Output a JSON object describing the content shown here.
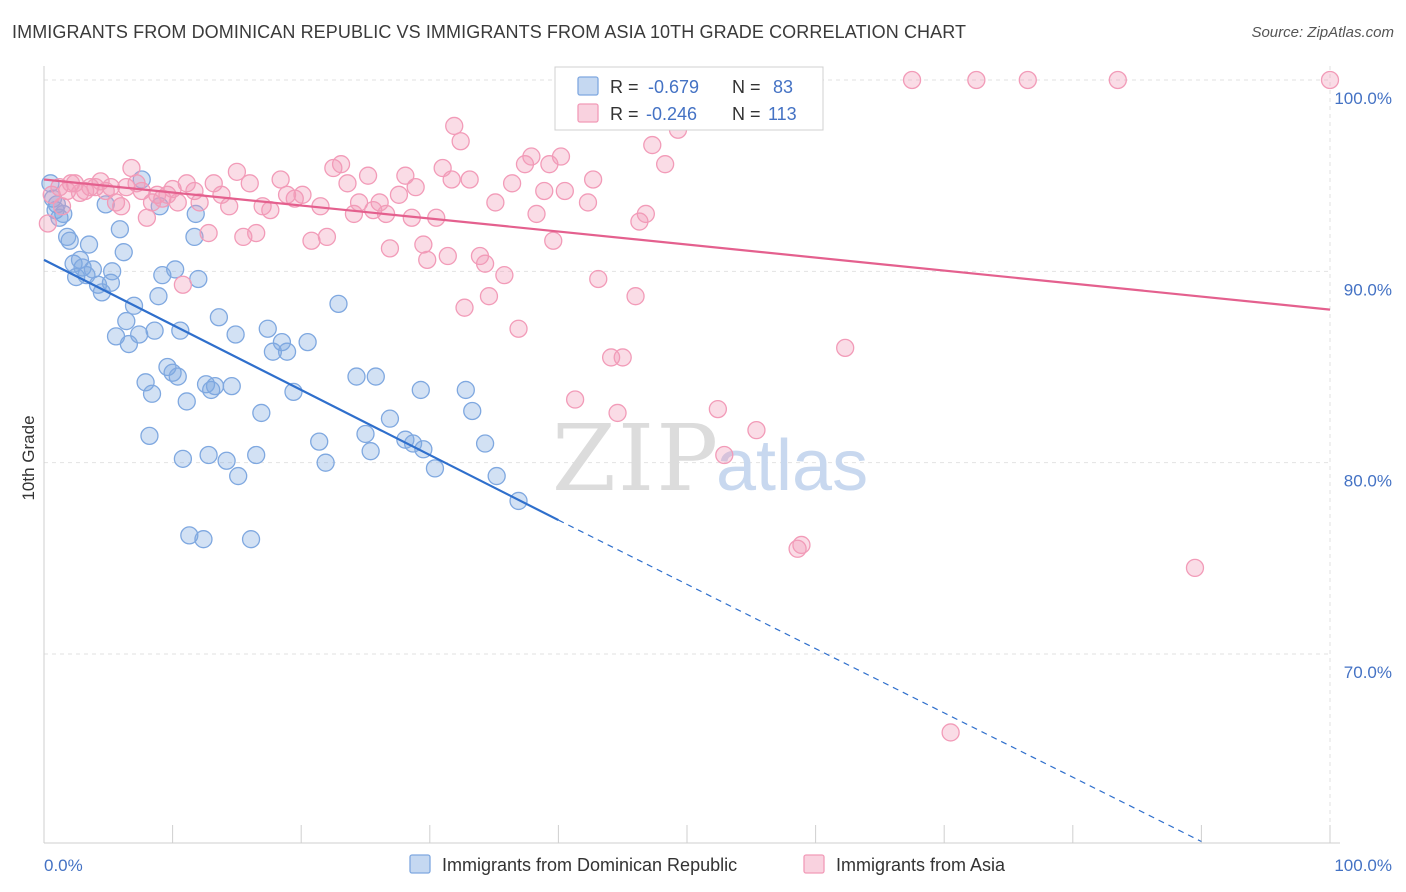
{
  "header": {
    "title": "IMMIGRANTS FROM DOMINICAN REPUBLIC VS IMMIGRANTS FROM ASIA 10TH GRADE CORRELATION CHART",
    "source": "Source: ZipAtlas.com"
  },
  "watermark": {
    "zip": "ZIP",
    "atlas": "atlas"
  },
  "chart_data": {
    "type": "scatter",
    "title": "IMMIGRANTS FROM DOMINICAN REPUBLIC VS IMMIGRANTS FROM ASIA 10TH GRADE CORRELATION CHART",
    "ylabel": "10th Grade",
    "xlabel": "",
    "xlim": [
      0,
      100
    ],
    "ylim": [
      60.5,
      101.5
    ],
    "x_tick_labels": [
      "0.0%",
      "100.0%"
    ],
    "y_ticks": [
      70,
      80,
      90,
      100
    ],
    "y_tick_labels": [
      "70.0%",
      "80.0%",
      "90.0%",
      "100.0%"
    ],
    "grid": true,
    "legend_position": "bottom",
    "stats": {
      "r_label": "R =",
      "n_label": "N =",
      "rows": [
        {
          "r": "-0.679",
          "n": "83"
        },
        {
          "r": "-0.246",
          "n": "113"
        }
      ]
    },
    "series": [
      {
        "name": "Immigrants from Dominican Republic",
        "color": "#7fa8e0",
        "line_color": "#2f6fcc",
        "trend": {
          "x0": 0,
          "y0": 90.6,
          "x1": 40,
          "y1": 77.0,
          "dash_x1": 90,
          "dash_y1": 60.2
        },
        "points": [
          [
            0.5,
            94.6
          ],
          [
            0.7,
            93.8
          ],
          [
            0.9,
            93.2
          ],
          [
            1.0,
            93.5
          ],
          [
            1.2,
            92.8
          ],
          [
            1.5,
            93.0
          ],
          [
            1.8,
            91.8
          ],
          [
            2.0,
            91.6
          ],
          [
            2.3,
            90.4
          ],
          [
            2.5,
            89.7
          ],
          [
            2.8,
            90.6
          ],
          [
            3.0,
            90.2
          ],
          [
            3.3,
            89.8
          ],
          [
            3.5,
            91.4
          ],
          [
            3.8,
            90.1
          ],
          [
            4.2,
            89.3
          ],
          [
            4.5,
            88.9
          ],
          [
            4.8,
            93.5
          ],
          [
            5.2,
            89.4
          ],
          [
            5.3,
            90.0
          ],
          [
            5.6,
            86.6
          ],
          [
            5.9,
            92.2
          ],
          [
            6.2,
            91.0
          ],
          [
            6.4,
            87.4
          ],
          [
            6.6,
            86.2
          ],
          [
            7.0,
            88.2
          ],
          [
            7.4,
            86.7
          ],
          [
            7.6,
            94.8
          ],
          [
            7.9,
            84.2
          ],
          [
            8.2,
            81.4
          ],
          [
            8.4,
            83.6
          ],
          [
            8.6,
            86.9
          ],
          [
            8.9,
            88.7
          ],
          [
            9.0,
            93.4
          ],
          [
            9.2,
            89.8
          ],
          [
            9.6,
            85.0
          ],
          [
            10.0,
            84.7
          ],
          [
            10.2,
            90.1
          ],
          [
            10.4,
            84.5
          ],
          [
            10.6,
            86.9
          ],
          [
            10.8,
            80.2
          ],
          [
            11.1,
            83.2
          ],
          [
            11.3,
            76.2
          ],
          [
            11.7,
            91.8
          ],
          [
            11.8,
            93.0
          ],
          [
            12.0,
            89.6
          ],
          [
            12.4,
            76.0
          ],
          [
            12.6,
            84.1
          ],
          [
            12.8,
            80.4
          ],
          [
            13.0,
            83.8
          ],
          [
            13.3,
            84.0
          ],
          [
            13.6,
            87.6
          ],
          [
            14.2,
            80.1
          ],
          [
            14.6,
            84.0
          ],
          [
            14.9,
            86.7
          ],
          [
            15.1,
            79.3
          ],
          [
            16.1,
            76.0
          ],
          [
            16.5,
            80.4
          ],
          [
            16.9,
            82.6
          ],
          [
            17.4,
            87.0
          ],
          [
            17.8,
            85.8
          ],
          [
            18.5,
            86.3
          ],
          [
            18.9,
            85.8
          ],
          [
            19.4,
            83.7
          ],
          [
            20.5,
            86.3
          ],
          [
            21.4,
            81.1
          ],
          [
            21.9,
            80.0
          ],
          [
            22.9,
            88.3
          ],
          [
            24.3,
            84.5
          ],
          [
            25.0,
            81.5
          ],
          [
            25.4,
            80.6
          ],
          [
            25.8,
            84.5
          ],
          [
            26.9,
            82.3
          ],
          [
            28.1,
            81.2
          ],
          [
            28.7,
            81.0
          ],
          [
            29.3,
            83.8
          ],
          [
            29.5,
            80.7
          ],
          [
            30.4,
            79.7
          ],
          [
            32.8,
            83.8
          ],
          [
            33.3,
            82.7
          ],
          [
            34.3,
            81.0
          ],
          [
            35.2,
            79.3
          ],
          [
            36.9,
            78.0
          ]
        ]
      },
      {
        "name": "Immigrants from Asia",
        "color": "#f29bb8",
        "line_color": "#e4608e",
        "trend": {
          "x0": 0,
          "y0": 94.8,
          "x1": 100,
          "y1": 88.0
        },
        "points": [
          [
            0.3,
            92.5
          ],
          [
            0.6,
            94.0
          ],
          [
            1.2,
            94.4
          ],
          [
            1.4,
            93.4
          ],
          [
            1.8,
            94.2
          ],
          [
            2.1,
            94.6
          ],
          [
            2.4,
            94.6
          ],
          [
            2.8,
            94.1
          ],
          [
            3.2,
            94.2
          ],
          [
            3.6,
            94.4
          ],
          [
            4.0,
            94.4
          ],
          [
            4.4,
            94.7
          ],
          [
            4.8,
            94.2
          ],
          [
            5.2,
            94.4
          ],
          [
            5.6,
            93.6
          ],
          [
            6.0,
            93.4
          ],
          [
            6.4,
            94.4
          ],
          [
            6.8,
            95.4
          ],
          [
            7.2,
            94.6
          ],
          [
            7.6,
            94.2
          ],
          [
            8.0,
            92.8
          ],
          [
            8.4,
            93.6
          ],
          [
            8.8,
            94.0
          ],
          [
            9.2,
            93.8
          ],
          [
            9.6,
            94.0
          ],
          [
            10.0,
            94.3
          ],
          [
            10.4,
            93.6
          ],
          [
            10.8,
            89.3
          ],
          [
            11.1,
            94.6
          ],
          [
            11.7,
            94.2
          ],
          [
            12.1,
            93.6
          ],
          [
            12.8,
            92.0
          ],
          [
            13.2,
            94.6
          ],
          [
            13.8,
            94.0
          ],
          [
            14.4,
            93.4
          ],
          [
            15.0,
            95.2
          ],
          [
            15.5,
            91.8
          ],
          [
            16.0,
            94.6
          ],
          [
            16.5,
            92.0
          ],
          [
            17.0,
            93.4
          ],
          [
            17.6,
            93.2
          ],
          [
            18.4,
            94.8
          ],
          [
            18.9,
            94.0
          ],
          [
            19.5,
            93.8
          ],
          [
            20.1,
            94.0
          ],
          [
            20.8,
            91.6
          ],
          [
            21.5,
            93.4
          ],
          [
            22.0,
            91.8
          ],
          [
            22.5,
            95.4
          ],
          [
            23.1,
            95.6
          ],
          [
            23.6,
            94.6
          ],
          [
            24.1,
            93.0
          ],
          [
            24.5,
            93.6
          ],
          [
            25.2,
            95.0
          ],
          [
            25.6,
            93.2
          ],
          [
            26.1,
            93.6
          ],
          [
            26.6,
            93.0
          ],
          [
            26.9,
            91.2
          ],
          [
            27.6,
            94.0
          ],
          [
            28.1,
            95.0
          ],
          [
            28.6,
            92.8
          ],
          [
            28.9,
            94.4
          ],
          [
            29.5,
            91.4
          ],
          [
            29.8,
            90.6
          ],
          [
            30.5,
            92.8
          ],
          [
            31.0,
            95.4
          ],
          [
            31.4,
            90.8
          ],
          [
            31.7,
            94.8
          ],
          [
            31.9,
            97.6
          ],
          [
            32.4,
            96.8
          ],
          [
            32.7,
            88.1
          ],
          [
            33.1,
            94.8
          ],
          [
            33.9,
            90.8
          ],
          [
            34.3,
            90.4
          ],
          [
            34.6,
            88.7
          ],
          [
            35.1,
            93.6
          ],
          [
            35.8,
            89.8
          ],
          [
            36.4,
            94.6
          ],
          [
            36.9,
            87.0
          ],
          [
            37.4,
            95.6
          ],
          [
            37.9,
            96.0
          ],
          [
            38.3,
            93.0
          ],
          [
            38.9,
            94.2
          ],
          [
            39.3,
            95.6
          ],
          [
            39.6,
            91.6
          ],
          [
            40.2,
            96.0
          ],
          [
            40.5,
            94.2
          ],
          [
            41.3,
            83.3
          ],
          [
            42.3,
            93.6
          ],
          [
            42.7,
            94.8
          ],
          [
            43.1,
            89.6
          ],
          [
            44.1,
            85.5
          ],
          [
            44.6,
            82.6
          ],
          [
            45.0,
            85.5
          ],
          [
            46.0,
            88.7
          ],
          [
            46.3,
            92.6
          ],
          [
            46.8,
            93.0
          ],
          [
            47.3,
            96.6
          ],
          [
            48.3,
            95.6
          ],
          [
            49.3,
            97.4
          ],
          [
            50.5,
            98.0
          ],
          [
            51.8,
            99.7
          ],
          [
            52.4,
            82.8
          ],
          [
            52.9,
            80.4
          ],
          [
            55.4,
            81.7
          ],
          [
            58.6,
            75.5
          ],
          [
            58.9,
            75.7
          ],
          [
            62.3,
            86.0
          ],
          [
            67.5,
            100.0
          ],
          [
            70.5,
            65.9
          ],
          [
            72.5,
            100.0
          ],
          [
            76.5,
            100.0
          ],
          [
            83.5,
            100.0
          ],
          [
            89.5,
            74.5
          ],
          [
            100.0,
            100.0
          ]
        ]
      }
    ]
  }
}
